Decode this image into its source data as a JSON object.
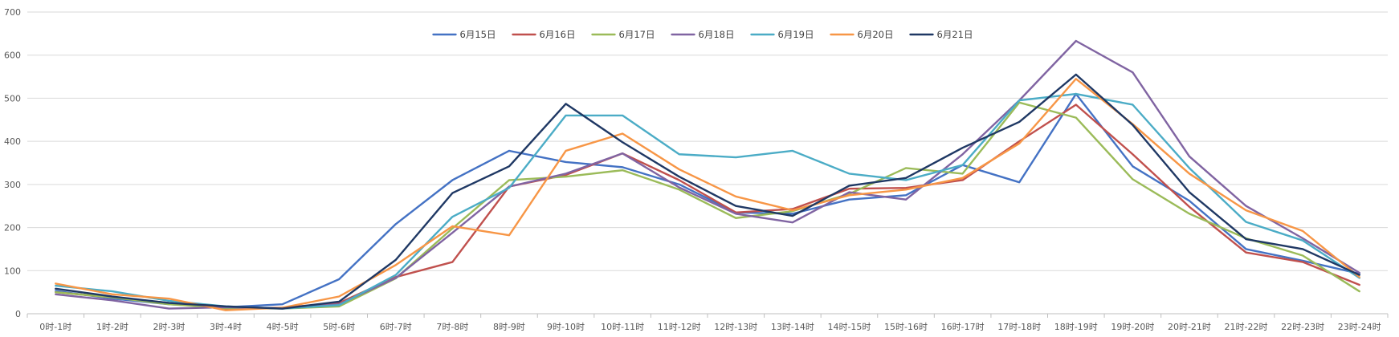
{
  "chart_data": {
    "type": "line",
    "title": "",
    "xlabel": "",
    "ylabel": "",
    "ylim": [
      0,
      700
    ],
    "yticks": [
      0,
      100,
      200,
      300,
      400,
      500,
      600,
      700
    ],
    "grid": true,
    "legend_position": "top",
    "categories": [
      "0时-1时",
      "1时-2时",
      "2时-3时",
      "3时-4时",
      "4时-5时",
      "5时-6时",
      "6时-7时",
      "7时-8时",
      "8时-9时",
      "9时-10时",
      "10时-11时",
      "11时-12时",
      "12时-13时",
      "13时-14时",
      "14时-15时",
      "15时-16时",
      "16时-17时",
      "17时-18时",
      "18时-19时",
      "19时-20时",
      "20时-21时",
      "21时-22时",
      "22时-23时",
      "23时-24时"
    ],
    "series": [
      {
        "name": "6月15日",
        "color": "#4472C4",
        "values": [
          53,
          35,
          22,
          15,
          22,
          80,
          208,
          310,
          378,
          352,
          340,
          300,
          235,
          232,
          265,
          275,
          345,
          305,
          510,
          342,
          262,
          150,
          123,
          93
        ]
      },
      {
        "name": "6月16日",
        "color": "#C0504D",
        "values": [
          50,
          38,
          25,
          12,
          14,
          25,
          85,
          120,
          295,
          322,
          372,
          310,
          235,
          243,
          290,
          292,
          310,
          400,
          485,
          370,
          248,
          142,
          120,
          67
        ]
      },
      {
        "name": "6月17日",
        "color": "#9BBB59",
        "values": [
          50,
          38,
          22,
          13,
          12,
          17,
          82,
          198,
          310,
          318,
          333,
          288,
          222,
          238,
          278,
          338,
          325,
          490,
          455,
          312,
          232,
          175,
          135,
          52
        ]
      },
      {
        "name": "6月18日",
        "color": "#8064A2",
        "values": [
          45,
          31,
          12,
          15,
          12,
          22,
          83,
          188,
          295,
          325,
          372,
          293,
          232,
          212,
          282,
          265,
          370,
          495,
          633,
          560,
          365,
          250,
          175,
          95
        ]
      },
      {
        "name": "6月19日",
        "color": "#4BACC6",
        "values": [
          65,
          52,
          30,
          17,
          12,
          20,
          90,
          225,
          292,
          460,
          460,
          370,
          363,
          378,
          325,
          310,
          345,
          495,
          510,
          485,
          338,
          213,
          170,
          83
        ]
      },
      {
        "name": "6月20日",
        "color": "#F79646",
        "values": [
          70,
          45,
          35,
          8,
          14,
          40,
          113,
          203,
          182,
          378,
          418,
          335,
          272,
          240,
          275,
          288,
          315,
          395,
          545,
          440,
          325,
          240,
          192,
          85
        ]
      },
      {
        "name": "6月21日",
        "color": "#1F3864",
        "values": [
          58,
          40,
          25,
          17,
          12,
          28,
          125,
          280,
          342,
          487,
          398,
          318,
          250,
          227,
          297,
          315,
          385,
          445,
          555,
          438,
          282,
          173,
          150,
          90
        ]
      }
    ]
  }
}
